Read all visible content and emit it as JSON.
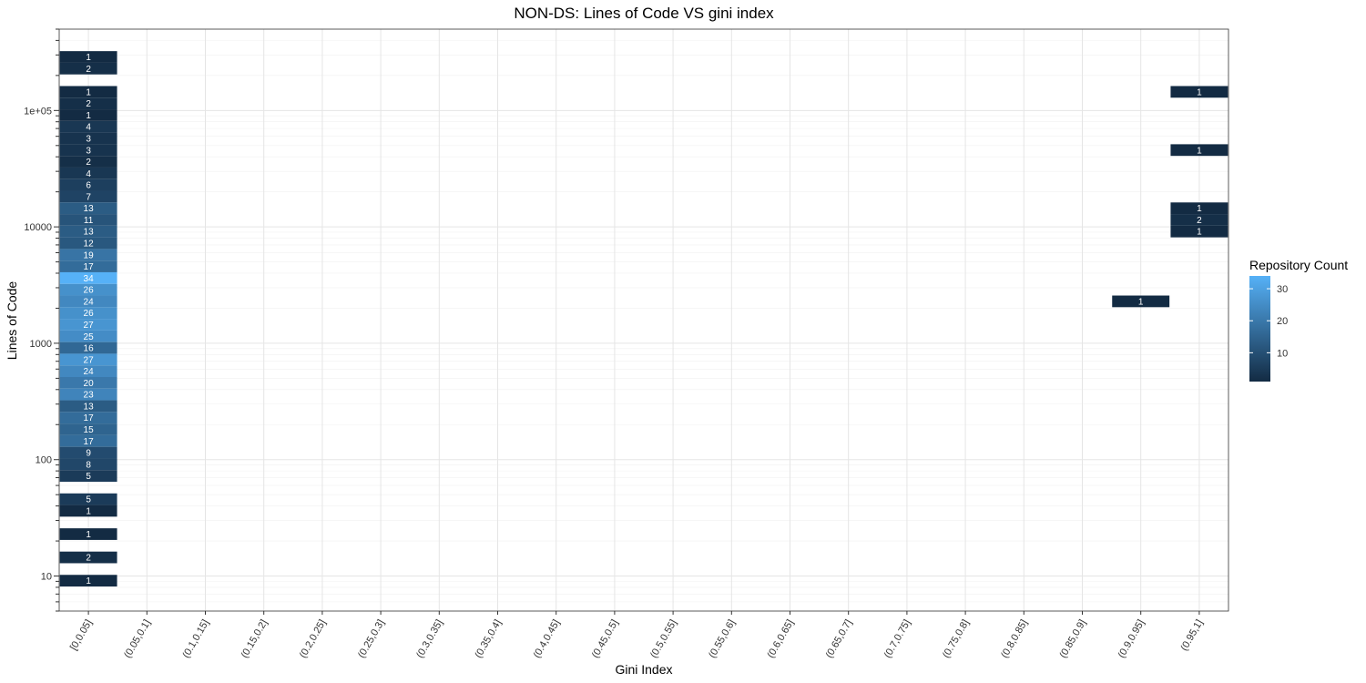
{
  "chart_data": {
    "type": "heatmap",
    "title": "NON-DS: Lines of Code VS gini index",
    "xlabel": "Gini Index",
    "ylabel": "Lines of Code",
    "x_categories": [
      "[0,0.05]",
      "(0.05,0.1]",
      "(0.1,0.15]",
      "(0.15,0.2]",
      "(0.2,0.25]",
      "(0.25,0.3]",
      "(0.3,0.35]",
      "(0.35,0.4]",
      "(0.4,0.45]",
      "(0.45,0.5]",
      "(0.5,0.55]",
      "(0.55,0.6]",
      "(0.6,0.65]",
      "(0.65,0.7]",
      "(0.7,0.75]",
      "(0.75,0.8]",
      "(0.8,0.85]",
      "(0.85,0.9]",
      "(0.9,0.95]",
      "(0.95,1]"
    ],
    "y_scale": "log10",
    "y_ticks": [
      {
        "value": 10,
        "label": "10"
      },
      {
        "value": 100,
        "label": "100"
      },
      {
        "value": 1000,
        "label": "1000"
      },
      {
        "value": 10000,
        "label": "10000"
      },
      {
        "value": 100000,
        "label": "1e+05"
      }
    ],
    "ylim": [
      5,
      500000
    ],
    "cells": [
      {
        "x": "[0,0.05]",
        "loc_log10": 5.46,
        "count": 1
      },
      {
        "x": "[0,0.05]",
        "loc_log10": 5.36,
        "count": 2
      },
      {
        "x": "[0,0.05]",
        "loc_log10": 5.16,
        "count": 1
      },
      {
        "x": "[0,0.05]",
        "loc_log10": 5.06,
        "count": 2
      },
      {
        "x": "[0,0.05]",
        "loc_log10": 4.96,
        "count": 1
      },
      {
        "x": "[0,0.05]",
        "loc_log10": 4.86,
        "count": 4
      },
      {
        "x": "[0,0.05]",
        "loc_log10": 4.76,
        "count": 3
      },
      {
        "x": "[0,0.05]",
        "loc_log10": 4.66,
        "count": 3
      },
      {
        "x": "[0,0.05]",
        "loc_log10": 4.56,
        "count": 2
      },
      {
        "x": "[0,0.05]",
        "loc_log10": 4.46,
        "count": 4
      },
      {
        "x": "[0,0.05]",
        "loc_log10": 4.36,
        "count": 6
      },
      {
        "x": "[0,0.05]",
        "loc_log10": 4.26,
        "count": 7
      },
      {
        "x": "[0,0.05]",
        "loc_log10": 4.16,
        "count": 13
      },
      {
        "x": "[0,0.05]",
        "loc_log10": 4.06,
        "count": 11
      },
      {
        "x": "[0,0.05]",
        "loc_log10": 3.96,
        "count": 13
      },
      {
        "x": "[0,0.05]",
        "loc_log10": 3.86,
        "count": 12
      },
      {
        "x": "[0,0.05]",
        "loc_log10": 3.76,
        "count": 19
      },
      {
        "x": "[0,0.05]",
        "loc_log10": 3.66,
        "count": 17
      },
      {
        "x": "[0,0.05]",
        "loc_log10": 3.56,
        "count": 34
      },
      {
        "x": "[0,0.05]",
        "loc_log10": 3.46,
        "count": 26
      },
      {
        "x": "[0,0.05]",
        "loc_log10": 3.36,
        "count": 24
      },
      {
        "x": "[0,0.05]",
        "loc_log10": 3.26,
        "count": 26
      },
      {
        "x": "[0,0.05]",
        "loc_log10": 3.16,
        "count": 27
      },
      {
        "x": "[0,0.05]",
        "loc_log10": 3.06,
        "count": 25
      },
      {
        "x": "[0,0.05]",
        "loc_log10": 2.96,
        "count": 16
      },
      {
        "x": "[0,0.05]",
        "loc_log10": 2.86,
        "count": 27
      },
      {
        "x": "[0,0.05]",
        "loc_log10": 2.76,
        "count": 24
      },
      {
        "x": "[0,0.05]",
        "loc_log10": 2.66,
        "count": 20
      },
      {
        "x": "[0,0.05]",
        "loc_log10": 2.56,
        "count": 23
      },
      {
        "x": "[0,0.05]",
        "loc_log10": 2.46,
        "count": 13
      },
      {
        "x": "[0,0.05]",
        "loc_log10": 2.36,
        "count": 17
      },
      {
        "x": "[0,0.05]",
        "loc_log10": 2.26,
        "count": 15
      },
      {
        "x": "[0,0.05]",
        "loc_log10": 2.16,
        "count": 17
      },
      {
        "x": "[0,0.05]",
        "loc_log10": 2.06,
        "count": 9
      },
      {
        "x": "[0,0.05]",
        "loc_log10": 1.96,
        "count": 8
      },
      {
        "x": "[0,0.05]",
        "loc_log10": 1.86,
        "count": 5
      },
      {
        "x": "[0,0.05]",
        "loc_log10": 1.66,
        "count": 5
      },
      {
        "x": "[0,0.05]",
        "loc_log10": 1.56,
        "count": 1
      },
      {
        "x": "[0,0.05]",
        "loc_log10": 1.36,
        "count": 1
      },
      {
        "x": "[0,0.05]",
        "loc_log10": 1.16,
        "count": 2
      },
      {
        "x": "[0,0.05]",
        "loc_log10": 0.96,
        "count": 1
      },
      {
        "x": "(0.9,0.95]",
        "loc_log10": 3.36,
        "count": 1
      },
      {
        "x": "(0.95,1]",
        "loc_log10": 5.16,
        "count": 1
      },
      {
        "x": "(0.95,1]",
        "loc_log10": 4.66,
        "count": 1
      },
      {
        "x": "(0.95,1]",
        "loc_log10": 4.16,
        "count": 1
      },
      {
        "x": "(0.95,1]",
        "loc_log10": 4.06,
        "count": 2
      },
      {
        "x": "(0.95,1]",
        "loc_log10": 3.96,
        "count": 1
      }
    ],
    "cell_height_log10": 0.1,
    "legend": {
      "title": "Repository Count",
      "ticks": [
        10,
        20,
        30
      ],
      "range": [
        1,
        34
      ],
      "color_low": "#132b43",
      "color_high": "#56b1f7",
      "placement": "right"
    },
    "grid": true
  }
}
